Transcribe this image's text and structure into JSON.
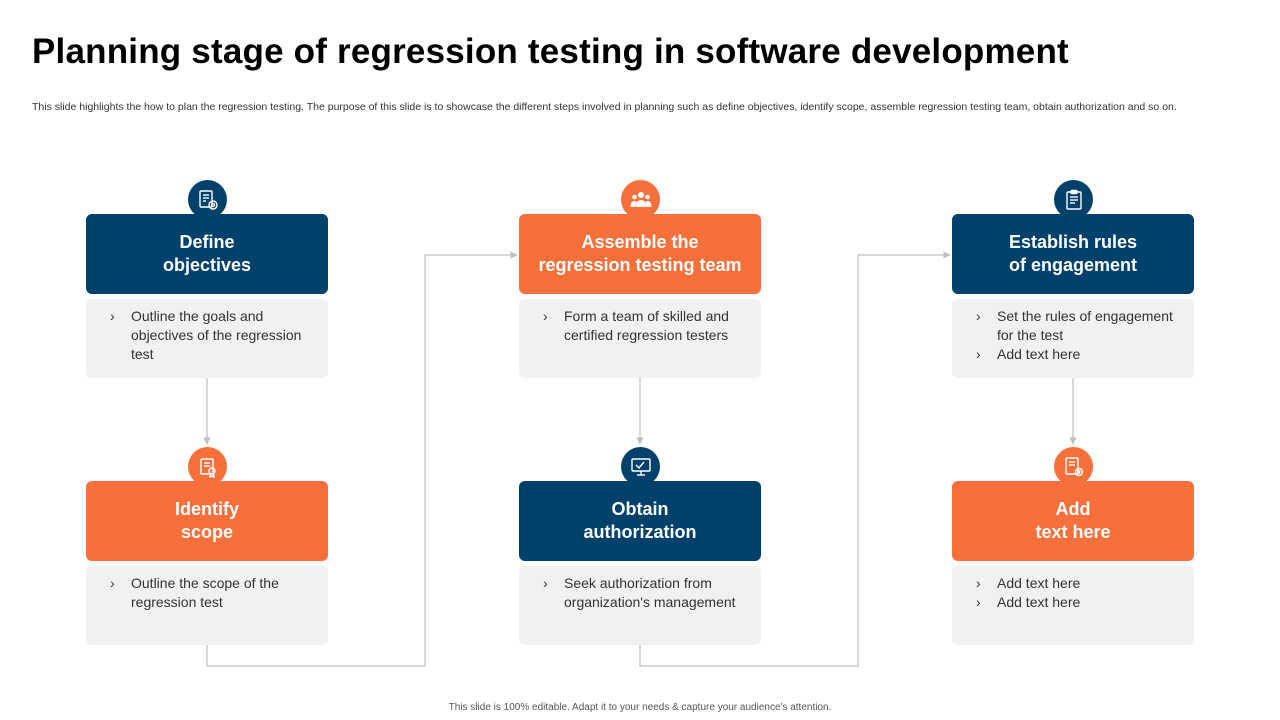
{
  "title": "Planning stage of regression testing in software development",
  "description": "This slide highlights the how to plan the regression testing. The purpose of this slide is to showcase the different steps involved in planning such as define objectives, identify scope, assemble regression testing team, obtain authorization and so on.",
  "colors": {
    "blue": "#00416b",
    "orange": "#f7703b",
    "panel": "#f1f1f1",
    "connector": "#bfbfbf"
  },
  "steps": [
    {
      "heading": "Define\nobjectives",
      "icon": "checklist-target-icon",
      "bullets": [
        "Outline the goals and objectives of the regression test"
      ]
    },
    {
      "heading": "Identify\nscope",
      "icon": "document-certificate-icon",
      "bullets": [
        "Outline the scope of the regression test"
      ]
    },
    {
      "heading": "Assemble the\nregression testing team",
      "icon": "team-icon",
      "bullets": [
        "Form a team of skilled and certified regression testers"
      ]
    },
    {
      "heading": "Obtain\nauthorization",
      "icon": "presentation-check-icon",
      "bullets": [
        "Seek authorization from organization's management"
      ]
    },
    {
      "heading": "Establish rules\nof engagement",
      "icon": "clipboard-rules-icon",
      "bullets": [
        "Set the rules of engagement for the test",
        "Add text here"
      ]
    },
    {
      "heading": "Add\ntext here",
      "icon": "report-settings-icon",
      "bullets": [
        "Add text here",
        "Add text here"
      ]
    }
  ],
  "footer": "This slide is 100% editable. Adapt it to your needs & capture your audience's attention."
}
